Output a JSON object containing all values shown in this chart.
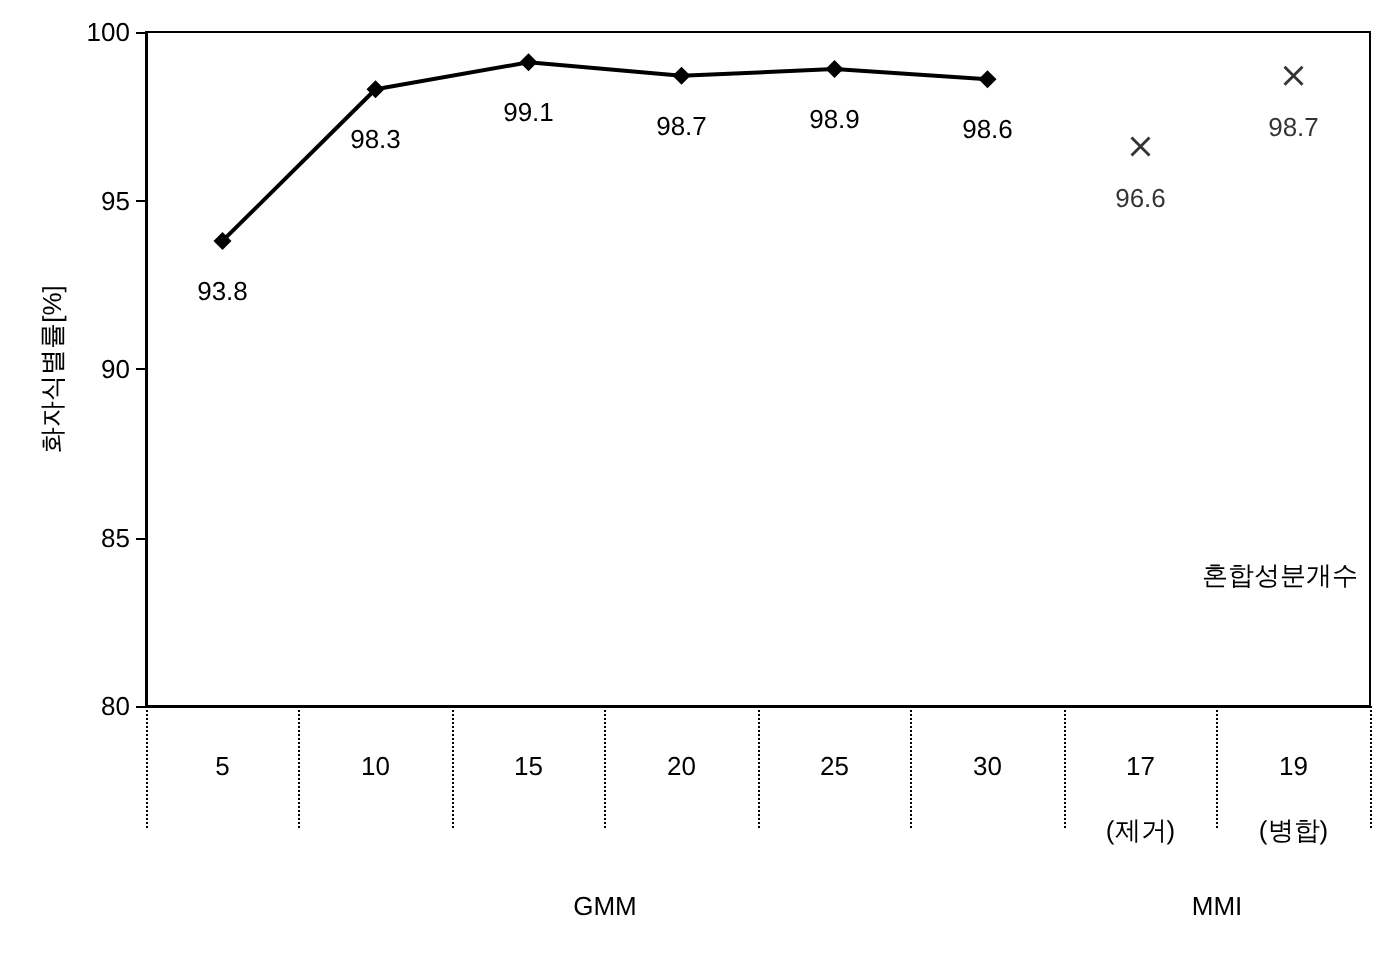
{
  "chart_data": {
    "type": "line",
    "ylabel": "화자식별률[%]",
    "categories": [
      "5",
      "10",
      "15",
      "20",
      "25",
      "30",
      "17\n(제거)",
      "19\n(병합)"
    ],
    "series": [
      {
        "color": "#000000",
        "marker": "diamond",
        "values": [
          93.8,
          98.3,
          99.1,
          98.7,
          98.9,
          98.6,
          null,
          null
        ]
      },
      {
        "type": "scatter",
        "color": "#000000",
        "marker": "cross",
        "values": [
          null,
          null,
          null,
          null,
          null,
          null,
          96.6,
          98.7
        ]
      }
    ],
    "ylim": [
      80,
      100
    ],
    "yticks": [
      80,
      85,
      90,
      95,
      100
    ],
    "grid": false,
    "data_labels": true,
    "annotations": [
      "혼합성분개수",
      "GMM",
      "MMI"
    ]
  }
}
